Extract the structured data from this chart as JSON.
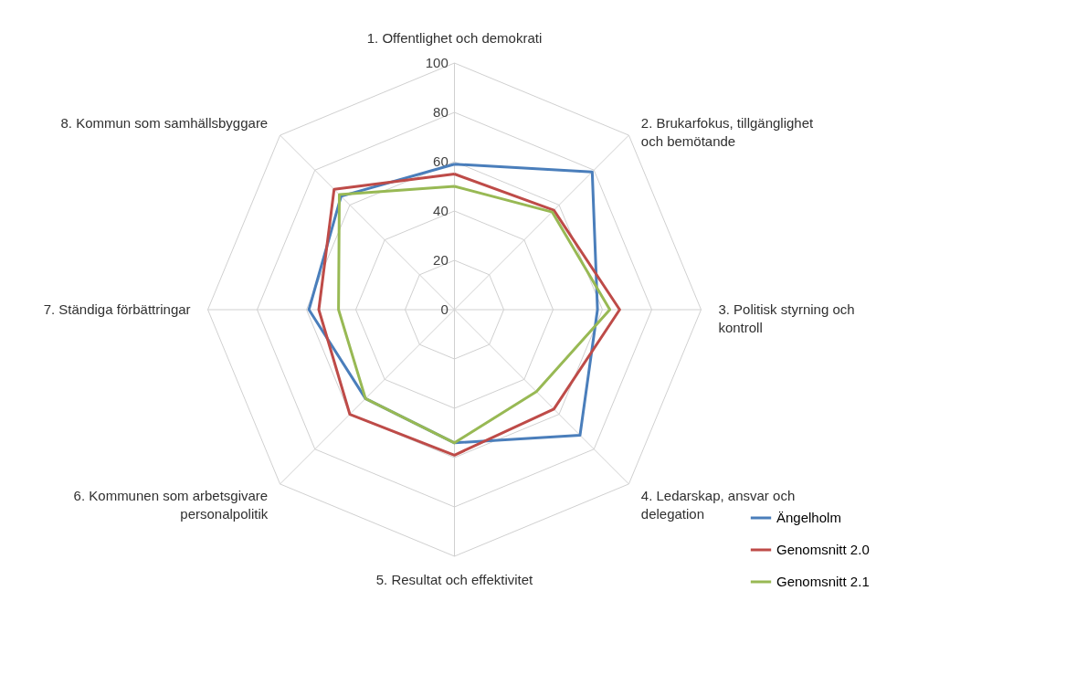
{
  "chart_data": {
    "type": "radar",
    "categories": [
      "1. Offentlighet och demokrati",
      "2. Brukarfokus, tillgänglighet och bemötande",
      "3. Politisk styrning och kontroll",
      "4. Ledarskap, ansvar och delegation",
      "5. Resultat och effektivitet",
      "6. Kommunen som arbetsgivare personalpolitik",
      "7. Ständiga förbättringar",
      "8. Kommun som samhällsbyggare"
    ],
    "series": [
      {
        "name": "Ängelholm",
        "color": "#4a7ebb",
        "values": [
          59,
          79,
          58,
          72,
          54,
          51,
          59,
          65
        ]
      },
      {
        "name": "Genomsnitt 2.0",
        "color": "#be4b48",
        "values": [
          55,
          57,
          67,
          57,
          59,
          60,
          55,
          69
        ]
      },
      {
        "name": "Genomsnitt 2.1",
        "color": "#98b954",
        "values": [
          50,
          56,
          63,
          47,
          54,
          51,
          47,
          66
        ]
      }
    ],
    "ylim": [
      0,
      100
    ],
    "yticks": [
      0,
      20,
      40,
      60,
      80,
      100
    ],
    "grid": true,
    "legend": "bottom right"
  }
}
